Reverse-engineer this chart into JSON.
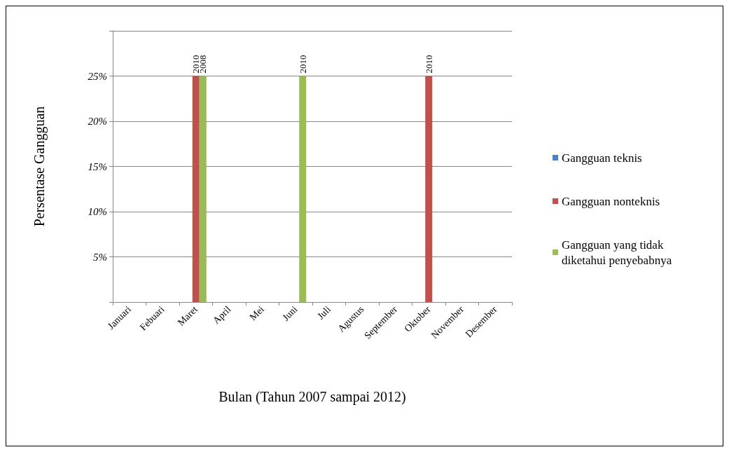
{
  "chart_data": {
    "type": "bar",
    "xlabel": "Bulan (Tahun 2007 sampai 2012)",
    "ylabel": "Persentase Gangguan",
    "categories": [
      "Januari",
      "Febuari",
      "Maret",
      "April",
      "Mei",
      "Juni",
      "Juli",
      "Agustus",
      "September",
      "Oktober",
      "November",
      "Desember"
    ],
    "series": [
      {
        "name": "Gangguan teknis",
        "color": "#4f81bd",
        "values": [
          null,
          null,
          null,
          null,
          null,
          null,
          null,
          null,
          null,
          null,
          null,
          null
        ]
      },
      {
        "name": "Gangguan nonteknis",
        "color": "#c0504d",
        "values": [
          null,
          null,
          25,
          null,
          null,
          null,
          null,
          null,
          null,
          25,
          null,
          null
        ]
      },
      {
        "name": "Gangguan yang tidak diketahui penyebabnya",
        "color": "#9bbb59",
        "values": [
          null,
          null,
          25,
          null,
          null,
          25,
          null,
          null,
          null,
          null,
          null,
          null
        ]
      }
    ],
    "annotations": [
      {
        "text": "2010",
        "x": "Maret",
        "y": 25
      },
      {
        "text": "2008",
        "x": "Maret",
        "y": 25
      },
      {
        "text": "2010",
        "x": "Juni",
        "y": 25
      },
      {
        "text": "2010",
        "x": "Oktober",
        "y": 25
      }
    ],
    "ylim": [
      0,
      30
    ],
    "yticks": [
      {
        "value": 0,
        "label": null
      },
      {
        "value": 5,
        "label": "5%"
      },
      {
        "value": 10,
        "label": "10%"
      },
      {
        "value": 15,
        "label": "15%"
      },
      {
        "value": 20,
        "label": "20%"
      },
      {
        "value": 25,
        "label": "25%"
      },
      {
        "value": 30,
        "label": null
      }
    ],
    "grid": "y",
    "legend": "right"
  }
}
